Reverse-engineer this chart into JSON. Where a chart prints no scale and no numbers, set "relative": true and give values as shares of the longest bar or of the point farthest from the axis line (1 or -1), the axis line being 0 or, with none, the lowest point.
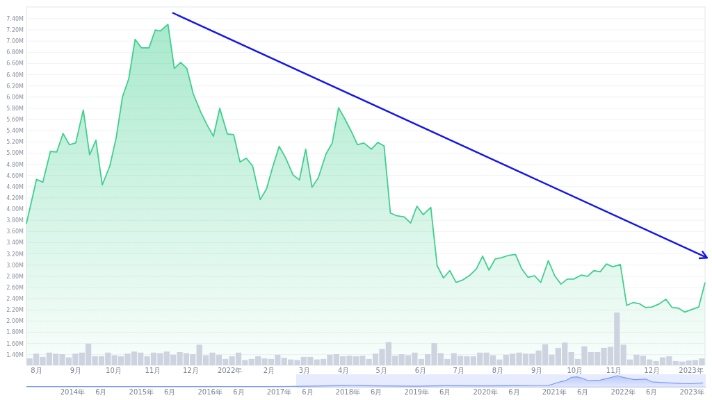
{
  "chart_data": [
    {
      "type": "area",
      "color": "#3fcf8e",
      "grid": "y",
      "x": [
        "2021-07-24",
        "2021-08-01",
        "2021-08-06",
        "2021-08-12",
        "2021-08-17",
        "2021-08-22",
        "2021-08-27",
        "2021-09-01",
        "2021-09-07",
        "2021-09-12",
        "2021-09-17",
        "2021-09-22",
        "2021-09-28",
        "2021-10-03",
        "2021-10-08",
        "2021-10-13",
        "2021-10-18",
        "2021-10-23",
        "2021-10-29",
        "2021-11-03",
        "2021-11-07",
        "2021-11-13",
        "2021-11-18",
        "2021-11-23",
        "2021-11-28",
        "2021-12-03",
        "2021-12-09",
        "2021-12-14",
        "2021-12-19",
        "2021-12-24",
        "2021-12-30",
        "2022-01-04",
        "2022-01-09",
        "2022-01-14",
        "2022-01-19",
        "2022-01-25",
        "2022-01-30",
        "2022-02-04",
        "2022-02-09",
        "2022-02-14",
        "2022-02-20",
        "2022-02-25",
        "2022-03-02",
        "2022-03-07",
        "2022-03-12",
        "2022-03-18",
        "2022-03-23",
        "2022-03-28",
        "2022-04-02",
        "2022-04-07",
        "2022-04-12",
        "2022-04-17",
        "2022-04-23",
        "2022-04-28",
        "2022-05-03",
        "2022-05-08",
        "2022-05-13",
        "2022-05-19",
        "2022-05-24",
        "2022-05-29",
        "2022-06-03",
        "2022-06-09",
        "2022-06-14",
        "2022-06-19",
        "2022-06-24",
        "2022-06-29",
        "2022-07-04",
        "2022-07-10",
        "2022-07-15",
        "2022-07-20",
        "2022-07-25",
        "2022-07-30",
        "2022-08-04",
        "2022-08-09",
        "2022-08-15",
        "2022-08-20",
        "2022-08-25",
        "2022-08-30",
        "2022-09-04",
        "2022-09-10",
        "2022-09-15",
        "2022-09-20",
        "2022-09-25",
        "2022-09-30",
        "2022-10-06",
        "2022-10-11",
        "2022-10-16",
        "2022-10-21",
        "2022-10-26",
        "2022-10-31",
        "2022-11-06",
        "2022-11-11",
        "2022-11-16",
        "2022-11-21",
        "2022-11-26",
        "2022-12-01",
        "2022-12-07",
        "2022-12-12",
        "2022-12-17",
        "2022-12-22",
        "2022-12-27",
        "2023-01-02",
        "2023-01-07",
        "2023-01-12"
      ],
      "values": [
        3.74,
        4.53,
        4.48,
        5.03,
        5.02,
        5.35,
        5.15,
        5.18,
        5.77,
        4.97,
        5.23,
        4.43,
        4.77,
        5.27,
        6.0,
        6.33,
        7.03,
        6.88,
        6.88,
        7.2,
        7.18,
        7.3,
        6.51,
        6.62,
        6.51,
        6.06,
        5.73,
        5.5,
        5.3,
        5.8,
        5.34,
        5.33,
        4.84,
        4.91,
        4.77,
        4.17,
        4.36,
        4.76,
        5.12,
        4.92,
        4.61,
        4.52,
        5.07,
        4.39,
        4.56,
        4.98,
        5.18,
        5.81,
        5.61,
        5.39,
        5.15,
        5.18,
        5.07,
        5.19,
        5.13,
        3.93,
        3.88,
        3.86,
        3.75,
        4.05,
        3.9,
        4.03,
        2.99,
        2.77,
        2.9,
        2.69,
        2.73,
        2.82,
        2.93,
        3.16,
        2.91,
        3.11,
        3.13,
        3.17,
        3.19,
        2.93,
        2.78,
        2.81,
        2.69,
        3.08,
        2.81,
        2.66,
        2.75,
        2.75,
        2.82,
        2.8,
        2.9,
        2.88,
        3.02,
        2.97,
        3.01,
        2.28,
        2.33,
        2.31,
        2.24,
        2.25,
        2.31,
        2.39,
        2.24,
        2.23,
        2.16,
        2.21,
        2.25,
        2.69
      ],
      "xlim": [
        "2021-07-24",
        "2023-01-12"
      ],
      "xticks": [
        {
          "value": "2021-08-01",
          "label": "8月"
        },
        {
          "value": "2021-09-01",
          "label": "9月"
        },
        {
          "value": "2021-10-01",
          "label": "10月"
        },
        {
          "value": "2021-11-01",
          "label": "11月"
        },
        {
          "value": "2021-12-01",
          "label": "12月"
        },
        {
          "value": "2022-01-01",
          "label": "2022年"
        },
        {
          "value": "2022-02-01",
          "label": "2月"
        },
        {
          "value": "2022-03-01",
          "label": "3月"
        },
        {
          "value": "2022-04-01",
          "label": "4月"
        },
        {
          "value": "2022-05-01",
          "label": "5月"
        },
        {
          "value": "2022-06-01",
          "label": "6月"
        },
        {
          "value": "2022-07-01",
          "label": "7月"
        },
        {
          "value": "2022-08-01",
          "label": "8月"
        },
        {
          "value": "2022-09-01",
          "label": "9月"
        },
        {
          "value": "2022-10-01",
          "label": "10月"
        },
        {
          "value": "2022-11-01",
          "label": "11月"
        },
        {
          "value": "2022-12-01",
          "label": "12月"
        },
        {
          "value": "2023-01-01",
          "label": "2023年"
        }
      ],
      "ylim": [
        1.21,
        7.61
      ],
      "yticks": [
        {
          "value": 1.4,
          "label": "1.40M"
        },
        {
          "value": 1.6,
          "label": "1.60M"
        },
        {
          "value": 1.8,
          "label": "1.80M"
        },
        {
          "value": 2.0,
          "label": "2.00M"
        },
        {
          "value": 2.2,
          "label": "2.20M"
        },
        {
          "value": 2.4,
          "label": "2.40M"
        },
        {
          "value": 2.6,
          "label": "2.60M"
        },
        {
          "value": 2.8,
          "label": "2.80M"
        },
        {
          "value": 3.0,
          "label": "3.00M"
        },
        {
          "value": 3.2,
          "label": "3.20M"
        },
        {
          "value": 3.4,
          "label": "3.40M"
        },
        {
          "value": 3.6,
          "label": "3.60M"
        },
        {
          "value": 3.8,
          "label": "3.80M"
        },
        {
          "value": 4.0,
          "label": "4.00M"
        },
        {
          "value": 4.2,
          "label": "4.20M"
        },
        {
          "value": 4.4,
          "label": "4.40M"
        },
        {
          "value": 4.6,
          "label": "4.60M"
        },
        {
          "value": 4.8,
          "label": "4.80M"
        },
        {
          "value": 5.0,
          "label": "5.00M"
        },
        {
          "value": 5.2,
          "label": "5.20M"
        },
        {
          "value": 5.4,
          "label": "5.40M"
        },
        {
          "value": 5.6,
          "label": "5.60M"
        },
        {
          "value": 5.8,
          "label": "5.80M"
        },
        {
          "value": 6.0,
          "label": "6.00M"
        },
        {
          "value": 6.2,
          "label": "6.20M"
        },
        {
          "value": 6.4,
          "label": "6.40M"
        },
        {
          "value": 6.6,
          "label": "6.60M"
        },
        {
          "value": 6.8,
          "label": "6.80M"
        },
        {
          "value": 7.0,
          "label": "7.00M"
        },
        {
          "value": 7.2,
          "label": "7.20M"
        },
        {
          "value": 7.4,
          "label": "7.40M"
        }
      ]
    },
    {
      "type": "bar",
      "color": "#cdd4e0",
      "relative": true,
      "categories": [
        null,
        null,
        null,
        null,
        null,
        null,
        null,
        null,
        null,
        null,
        null,
        null,
        null,
        null,
        null,
        null,
        null,
        null,
        null,
        null,
        null,
        null,
        null,
        null,
        null,
        null,
        null,
        null,
        null,
        null,
        null,
        null,
        null,
        null,
        null,
        null,
        null,
        null,
        null,
        null,
        null,
        null,
        null,
        null,
        null,
        null,
        null,
        null,
        null,
        null,
        null,
        null,
        null,
        null,
        null,
        null,
        null,
        null,
        null,
        null,
        null,
        null,
        null,
        null,
        null,
        null,
        null,
        null,
        null,
        null,
        null,
        null,
        null,
        null,
        null,
        null,
        null,
        null,
        null,
        null,
        null,
        null,
        null,
        null,
        null,
        null,
        null,
        null,
        null,
        null,
        null,
        null,
        null,
        null,
        null,
        null,
        null,
        null,
        null,
        null,
        null,
        null,
        null,
        null
      ],
      "values": [
        0.13,
        0.22,
        0.16,
        0.24,
        0.22,
        0.21,
        0.15,
        0.22,
        0.24,
        0.41,
        0.17,
        0.17,
        0.24,
        0.19,
        0.17,
        0.22,
        0.26,
        0.24,
        0.17,
        0.24,
        0.23,
        0.26,
        0.2,
        0.25,
        0.23,
        0.21,
        0.39,
        0.19,
        0.24,
        0.2,
        0.12,
        0.17,
        0.24,
        0.1,
        0.12,
        0.17,
        0.13,
        0.12,
        0.2,
        0.14,
        0.11,
        0.1,
        0.16,
        0.16,
        0.11,
        0.12,
        0.2,
        0.21,
        0.17,
        0.18,
        0.17,
        0.18,
        0.12,
        0.22,
        0.31,
        0.44,
        0.18,
        0.21,
        0.19,
        0.24,
        0.12,
        0.21,
        0.42,
        0.23,
        0.12,
        0.23,
        0.18,
        0.17,
        0.17,
        0.24,
        0.24,
        0.19,
        0.11,
        0.2,
        0.22,
        0.24,
        0.22,
        0.22,
        0.28,
        0.4,
        0.2,
        0.33,
        0.43,
        0.25,
        0.12,
        0.36,
        0.25,
        0.25,
        0.33,
        0.35,
        1,
        0.39,
        0.11,
        0.2,
        0.18,
        0.11,
        0.08,
        0.15,
        0.17,
        0.08,
        0.07,
        0.09,
        0.1,
        0.13
      ]
    },
    {
      "type": "area",
      "color": "#7d9cf2",
      "relative": true,
      "x": [
        "2013-05-01",
        "2017-01-01",
        "2017-06-01",
        "2018-01-01",
        "2018-06-01",
        "2019-01-01",
        "2019-06-01",
        "2020-01-01",
        "2020-06-01",
        "2020-12-01",
        "2021-02-01",
        "2021-03-01",
        "2021-04-01",
        "2021-05-01",
        "2021-06-01",
        "2021-07-01",
        "2021-09-01",
        "2021-11-01",
        "2021-12-01",
        "2022-01-01",
        "2022-03-01",
        "2022-05-01",
        "2022-06-01",
        "2022-09-01",
        "2022-11-01",
        "2023-01-01",
        "2023-03-01"
      ],
      "values": [
        0.02,
        0.02,
        0.05,
        0.12,
        0.08,
        0.06,
        0.1,
        0.08,
        0.1,
        0.12,
        0.45,
        0.55,
        0.85,
        0.9,
        0.75,
        0.55,
        0.6,
        0.85,
        1,
        0.85,
        0.65,
        0.7,
        0.45,
        0.35,
        0.3,
        0.28,
        0.35
      ],
      "xlim": [
        "2013-05-01",
        "2023-03-15"
      ],
      "xticks": [
        {
          "value": "2014-01-01",
          "label": "2014年"
        },
        {
          "value": "2014-06-01",
          "label": "6月"
        },
        {
          "value": "2015-01-01",
          "label": "2015年"
        },
        {
          "value": "2015-06-01",
          "label": "6月"
        },
        {
          "value": "2016-01-01",
          "label": "2016年"
        },
        {
          "value": "2016-06-01",
          "label": "6月"
        },
        {
          "value": "2017-01-01",
          "label": "2017年"
        },
        {
          "value": "2017-06-01",
          "label": "6月"
        },
        {
          "value": "2018-01-01",
          "label": "2018年"
        },
        {
          "value": "2018-06-01",
          "label": "6月"
        },
        {
          "value": "2019-01-01",
          "label": "2019年"
        },
        {
          "value": "2019-06-01",
          "label": "6月"
        },
        {
          "value": "2020-01-01",
          "label": "2020年"
        },
        {
          "value": "2020-06-01",
          "label": "6月"
        },
        {
          "value": "2021-01-01",
          "label": "2021年"
        },
        {
          "value": "2021-06-01",
          "label": "6月"
        },
        {
          "value": "2022-01-01",
          "label": "2022年"
        },
        {
          "value": "2022-06-01",
          "label": "6月"
        },
        {
          "value": "2023-01-01",
          "label": "2023年"
        }
      ],
      "bands": [
        {
          "axis": "x",
          "from": "2017-04-01",
          "to": "2023-03-15",
          "color": "#e6ebfd"
        }
      ]
    }
  ]
}
